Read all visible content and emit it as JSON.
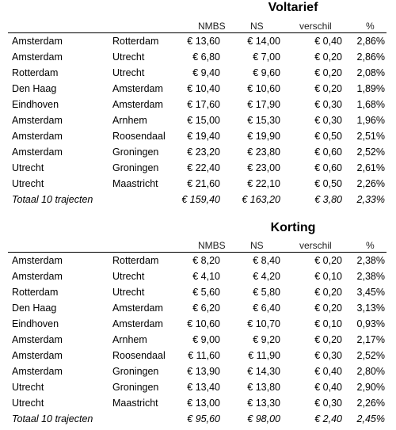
{
  "tables": [
    {
      "title": "Voltarief",
      "headers": {
        "nmbs": "NMBS",
        "ns": "NS",
        "diff": "verschil",
        "pct": "%"
      },
      "rows": [
        {
          "from": "Amsterdam",
          "to": "Rotterdam",
          "nmbs": "€ 13,60",
          "ns": "€ 14,00",
          "diff": "€ 0,40",
          "pct": "2,86%"
        },
        {
          "from": "Amsterdam",
          "to": "Utrecht",
          "nmbs": "€ 6,80",
          "ns": "€ 7,00",
          "diff": "€ 0,20",
          "pct": "2,86%"
        },
        {
          "from": "Rotterdam",
          "to": "Utrecht",
          "nmbs": "€ 9,40",
          "ns": "€ 9,60",
          "diff": "€ 0,20",
          "pct": "2,08%"
        },
        {
          "from": "Den Haag",
          "to": "Amsterdam",
          "nmbs": "€ 10,40",
          "ns": "€ 10,60",
          "diff": "€ 0,20",
          "pct": "1,89%"
        },
        {
          "from": "Eindhoven",
          "to": "Amsterdam",
          "nmbs": "€ 17,60",
          "ns": "€ 17,90",
          "diff": "€ 0,30",
          "pct": "1,68%"
        },
        {
          "from": "Amsterdam",
          "to": "Arnhem",
          "nmbs": "€ 15,00",
          "ns": "€ 15,30",
          "diff": "€ 0,30",
          "pct": "1,96%"
        },
        {
          "from": "Amsterdam",
          "to": "Roosendaal",
          "nmbs": "€ 19,40",
          "ns": "€ 19,90",
          "diff": "€ 0,50",
          "pct": "2,51%"
        },
        {
          "from": "Amsterdam",
          "to": "Groningen",
          "nmbs": "€ 23,20",
          "ns": "€ 23,80",
          "diff": "€ 0,60",
          "pct": "2,52%"
        },
        {
          "from": "Utrecht",
          "to": "Groningen",
          "nmbs": "€ 22,40",
          "ns": "€ 23,00",
          "diff": "€ 0,60",
          "pct": "2,61%"
        },
        {
          "from": "Utrecht",
          "to": "Maastricht",
          "nmbs": "€ 21,60",
          "ns": "€ 22,10",
          "diff": "€ 0,50",
          "pct": "2,26%"
        }
      ],
      "total": {
        "label": "Totaal 10 trajecten",
        "nmbs": "€ 159,40",
        "ns": "€ 163,20",
        "diff": "€ 3,80",
        "pct": "2,33%"
      }
    },
    {
      "title": "Korting",
      "headers": {
        "nmbs": "NMBS",
        "ns": "NS",
        "diff": "verschil",
        "pct": "%"
      },
      "rows": [
        {
          "from": "Amsterdam",
          "to": "Rotterdam",
          "nmbs": "€ 8,20",
          "ns": "€ 8,40",
          "diff": "€ 0,20",
          "pct": "2,38%"
        },
        {
          "from": "Amsterdam",
          "to": "Utrecht",
          "nmbs": "€ 4,10",
          "ns": "€ 4,20",
          "diff": "€ 0,10",
          "pct": "2,38%"
        },
        {
          "from": "Rotterdam",
          "to": "Utrecht",
          "nmbs": "€ 5,60",
          "ns": "€ 5,80",
          "diff": "€ 0,20",
          "pct": "3,45%"
        },
        {
          "from": "Den Haag",
          "to": "Amsterdam",
          "nmbs": "€ 6,20",
          "ns": "€ 6,40",
          "diff": "€ 0,20",
          "pct": "3,13%"
        },
        {
          "from": "Eindhoven",
          "to": "Amsterdam",
          "nmbs": "€ 10,60",
          "ns": "€ 10,70",
          "diff": "€ 0,10",
          "pct": "0,93%"
        },
        {
          "from": "Amsterdam",
          "to": "Arnhem",
          "nmbs": "€ 9,00",
          "ns": "€ 9,20",
          "diff": "€ 0,20",
          "pct": "2,17%"
        },
        {
          "from": "Amsterdam",
          "to": "Roosendaal",
          "nmbs": "€ 11,60",
          "ns": "€ 11,90",
          "diff": "€ 0,30",
          "pct": "2,52%"
        },
        {
          "from": "Amsterdam",
          "to": "Groningen",
          "nmbs": "€ 13,90",
          "ns": "€ 14,30",
          "diff": "€ 0,40",
          "pct": "2,80%"
        },
        {
          "from": "Utrecht",
          "to": "Groningen",
          "nmbs": "€ 13,40",
          "ns": "€ 13,80",
          "diff": "€ 0,40",
          "pct": "2,90%"
        },
        {
          "from": "Utrecht",
          "to": "Maastricht",
          "nmbs": "€ 13,00",
          "ns": "€ 13,30",
          "diff": "€ 0,30",
          "pct": "2,26%"
        }
      ],
      "total": {
        "label": "Totaal 10 trajecten",
        "nmbs": "€ 95,60",
        "ns": "€ 98,00",
        "diff": "€ 2,40",
        "pct": "2,45%"
      }
    }
  ]
}
